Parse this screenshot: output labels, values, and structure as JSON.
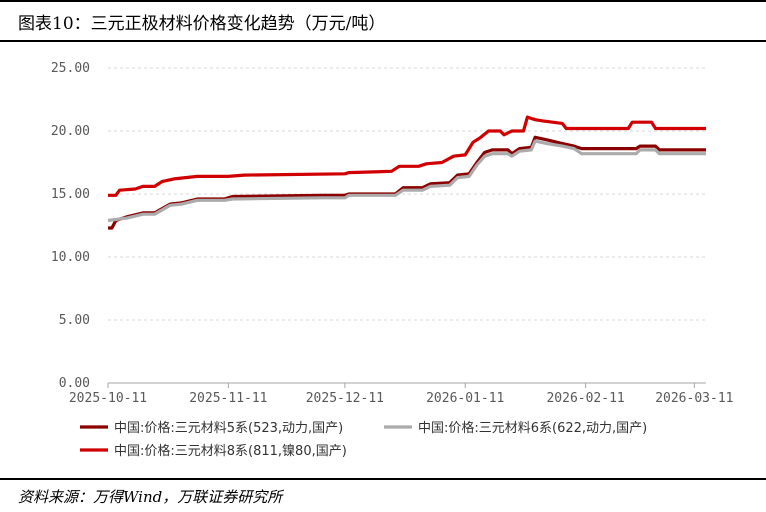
{
  "figure": {
    "title": "图表10：三元正极材料价格变化趋势（万元/吨）",
    "source": "资料来源：万得Wind，万联证券研究所"
  },
  "chart_data": {
    "type": "line",
    "ylim": [
      0,
      25
    ],
    "yticks": [
      "0.00",
      "5.00",
      "10.00",
      "15.00",
      "20.00",
      "25.00"
    ],
    "xticks": [
      "2025-10-11",
      "2025-11-11",
      "2025-12-11",
      "2026-01-11",
      "2026-02-11",
      "2026-03-11"
    ],
    "grid": "horizontal",
    "legend_position": "bottom",
    "x_range": [
      "2025-10-11",
      "2026-03-14"
    ],
    "series": [
      {
        "name": "中国:价格:三元材料5系(523,动力,国产)",
        "color": "#8B0000",
        "points": [
          [
            "2025-10-11",
            12.3
          ],
          [
            "2025-10-12",
            12.3
          ],
          [
            "2025-10-13",
            12.9
          ],
          [
            "2025-10-16",
            13.2
          ],
          [
            "2025-10-20",
            13.5
          ],
          [
            "2025-10-23",
            13.5
          ],
          [
            "2025-10-27",
            14.2
          ],
          [
            "2025-10-30",
            14.3
          ],
          [
            "2025-11-03",
            14.6
          ],
          [
            "2025-11-10",
            14.6
          ],
          [
            "2025-11-12",
            14.8
          ],
          [
            "2025-12-05",
            14.9
          ],
          [
            "2025-12-11",
            14.9
          ],
          [
            "2025-12-12",
            15.0
          ],
          [
            "2025-12-24",
            15.0
          ],
          [
            "2025-12-26",
            15.5
          ],
          [
            "2025-12-31",
            15.5
          ],
          [
            "2026-01-02",
            15.8
          ],
          [
            "2026-01-07",
            15.9
          ],
          [
            "2026-01-09",
            16.5
          ],
          [
            "2026-01-12",
            16.6
          ],
          [
            "2026-01-14",
            17.5
          ],
          [
            "2026-01-16",
            18.3
          ],
          [
            "2026-01-18",
            18.5
          ],
          [
            "2026-01-22",
            18.5
          ],
          [
            "2026-01-23",
            18.2
          ],
          [
            "2026-01-25",
            18.6
          ],
          [
            "2026-01-28",
            18.7
          ],
          [
            "2026-01-29",
            19.5
          ],
          [
            "2026-02-01",
            19.3
          ],
          [
            "2026-02-05",
            19.0
          ],
          [
            "2026-02-08",
            18.8
          ],
          [
            "2026-02-10",
            18.6
          ],
          [
            "2026-02-24",
            18.6
          ],
          [
            "2026-02-25",
            18.8
          ],
          [
            "2026-03-01",
            18.8
          ],
          [
            "2026-03-02",
            18.5
          ],
          [
            "2026-03-14",
            18.5
          ]
        ]
      },
      {
        "name": "中国:价格:三元材料6系(622,动力,国产)",
        "color": "#ABABAB",
        "points": [
          [
            "2025-10-11",
            12.9
          ],
          [
            "2025-10-16",
            13.1
          ],
          [
            "2025-10-20",
            13.4
          ],
          [
            "2025-10-23",
            13.4
          ],
          [
            "2025-10-27",
            14.1
          ],
          [
            "2025-10-30",
            14.2
          ],
          [
            "2025-11-03",
            14.5
          ],
          [
            "2025-11-10",
            14.5
          ],
          [
            "2025-11-12",
            14.6
          ],
          [
            "2025-12-05",
            14.7
          ],
          [
            "2025-12-11",
            14.7
          ],
          [
            "2025-12-12",
            14.9
          ],
          [
            "2025-12-24",
            14.9
          ],
          [
            "2025-12-26",
            15.3
          ],
          [
            "2025-12-31",
            15.3
          ],
          [
            "2026-01-02",
            15.6
          ],
          [
            "2026-01-07",
            15.7
          ],
          [
            "2026-01-09",
            16.3
          ],
          [
            "2026-01-12",
            16.4
          ],
          [
            "2026-01-14",
            17.3
          ],
          [
            "2026-01-16",
            18.0
          ],
          [
            "2026-01-18",
            18.2
          ],
          [
            "2026-01-22",
            18.2
          ],
          [
            "2026-01-23",
            18.0
          ],
          [
            "2026-01-25",
            18.4
          ],
          [
            "2026-01-28",
            18.5
          ],
          [
            "2026-01-29",
            19.2
          ],
          [
            "2026-02-01",
            19.0
          ],
          [
            "2026-02-05",
            18.8
          ],
          [
            "2026-02-08",
            18.6
          ],
          [
            "2026-02-10",
            18.2
          ],
          [
            "2026-02-24",
            18.2
          ],
          [
            "2026-02-25",
            18.5
          ],
          [
            "2026-03-01",
            18.5
          ],
          [
            "2026-03-02",
            18.2
          ],
          [
            "2026-03-14",
            18.2
          ]
        ]
      },
      {
        "name": "中国:价格:三元材料8系(811,镍80,国产)",
        "color": "#D00000",
        "points": [
          [
            "2025-10-11",
            14.9
          ],
          [
            "2025-10-13",
            14.9
          ],
          [
            "2025-10-14",
            15.3
          ],
          [
            "2025-10-18",
            15.4
          ],
          [
            "2025-10-20",
            15.6
          ],
          [
            "2025-10-23",
            15.6
          ],
          [
            "2025-10-25",
            16.0
          ],
          [
            "2025-10-28",
            16.2
          ],
          [
            "2025-10-31",
            16.3
          ],
          [
            "2025-11-03",
            16.4
          ],
          [
            "2025-11-11",
            16.4
          ],
          [
            "2025-11-15",
            16.5
          ],
          [
            "2025-12-11",
            16.6
          ],
          [
            "2025-12-12",
            16.7
          ],
          [
            "2025-12-23",
            16.8
          ],
          [
            "2025-12-25",
            17.2
          ],
          [
            "2025-12-30",
            17.2
          ],
          [
            "2026-01-01",
            17.4
          ],
          [
            "2026-01-05",
            17.5
          ],
          [
            "2026-01-08",
            18.0
          ],
          [
            "2026-01-11",
            18.1
          ],
          [
            "2026-01-13",
            19.1
          ],
          [
            "2026-01-15",
            19.5
          ],
          [
            "2026-01-17",
            20.0
          ],
          [
            "2026-01-20",
            20.0
          ],
          [
            "2026-01-21",
            19.7
          ],
          [
            "2026-01-23",
            20.0
          ],
          [
            "2026-01-26",
            20.0
          ],
          [
            "2026-01-27",
            21.1
          ],
          [
            "2026-01-29",
            20.9
          ],
          [
            "2026-01-31",
            20.8
          ],
          [
            "2026-02-05",
            20.6
          ],
          [
            "2026-02-06",
            20.2
          ],
          [
            "2026-02-22",
            20.2
          ],
          [
            "2026-02-23",
            20.7
          ],
          [
            "2026-02-28",
            20.7
          ],
          [
            "2026-03-01",
            20.2
          ],
          [
            "2026-03-14",
            20.2
          ]
        ]
      }
    ]
  }
}
